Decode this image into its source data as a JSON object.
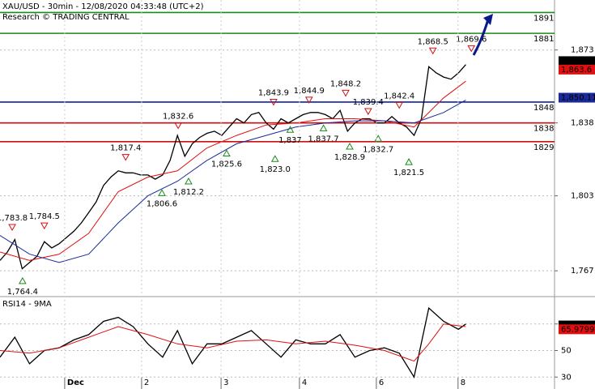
{
  "chart_data": [
    {
      "type": "line",
      "title": "XAU/USD - 30min - 12/08/2020 04:33:48 (UTC+2)",
      "subtitle": "Research © TRADING CENTRAL",
      "xlim": [
        0,
        150
      ],
      "ylim": [
        1755,
        1897
      ],
      "yticks": [
        {
          "value": 1767,
          "label": "1,767"
        },
        {
          "value": 1803,
          "label": "1,803"
        },
        {
          "value": 1838,
          "label": "1,838"
        },
        {
          "value": 1873,
          "label": "1,873"
        }
      ],
      "grid": true,
      "series": [
        {
          "color": "#000000",
          "x": [
            0,
            2,
            4,
            6,
            8,
            10,
            12,
            14,
            16,
            18,
            20,
            22,
            24,
            26,
            28,
            30,
            32,
            34,
            36,
            38,
            40,
            42,
            44,
            46,
            48,
            50,
            52,
            54,
            56,
            58,
            60,
            62,
            64,
            66,
            68,
            70,
            72,
            74,
            76,
            78,
            80,
            82,
            84,
            86,
            88,
            90,
            92,
            94,
            96,
            98,
            100,
            102,
            104,
            106,
            108,
            110,
            112,
            114,
            116,
            118,
            120,
            122,
            124,
            126
          ],
          "values": [
            1772,
            1776,
            1782,
            1768,
            1771,
            1774,
            1781,
            1778,
            1780,
            1783,
            1786,
            1790,
            1795,
            1800,
            1808,
            1812,
            1815,
            1814,
            1814,
            1813,
            1813,
            1811,
            1813,
            1820,
            1832,
            1822,
            1828,
            1831,
            1833,
            1834,
            1832,
            1836,
            1840,
            1838,
            1842,
            1843,
            1838,
            1835,
            1840,
            1838,
            1840,
            1842,
            1843,
            1843,
            1842,
            1840,
            1844,
            1834,
            1838,
            1840,
            1840,
            1838,
            1838,
            1841,
            1838,
            1836,
            1832,
            1840,
            1865,
            1862,
            1860,
            1859,
            1862,
            1866
          ]
        },
        {
          "color": "#e01010",
          "x": [
            0,
            8,
            16,
            24,
            32,
            40,
            48,
            56,
            64,
            72,
            80,
            88,
            96,
            104,
            112,
            120,
            126
          ],
          "values": [
            1776,
            1772,
            1775,
            1785,
            1805,
            1812,
            1815,
            1826,
            1832,
            1837,
            1838,
            1840,
            1840,
            1839,
            1836,
            1850,
            1858
          ]
        },
        {
          "color": "#1a2a9a",
          "x": [
            0,
            8,
            16,
            24,
            32,
            40,
            48,
            56,
            64,
            72,
            80,
            88,
            96,
            104,
            112,
            120,
            126
          ],
          "values": [
            1784,
            1775,
            1771,
            1775,
            1790,
            1803,
            1810,
            1820,
            1828,
            1832,
            1836,
            1838,
            1839,
            1839,
            1838,
            1843,
            1849
          ]
        }
      ],
      "levels": [
        {
          "value": 1891,
          "color": "#1a8a1a"
        },
        {
          "value": 1881,
          "color": "#1a8a1a"
        },
        {
          "value": 1848,
          "color": "#1020a0"
        },
        {
          "value": 1838,
          "color": "#d01010"
        },
        {
          "value": 1829,
          "color": "#d01010"
        }
      ],
      "annotations": [
        {
          "label": "1,783.8",
          "x": 3.3,
          "value": 1783.8,
          "kind": "high"
        },
        {
          "label": "1,784.5",
          "x": 12,
          "value": 1784.5,
          "kind": "high"
        },
        {
          "label": "1,764.4",
          "x": 6.1,
          "value": 1764.4,
          "kind": "low"
        },
        {
          "label": "1,817.4",
          "x": 34,
          "value": 1817.4,
          "kind": "high"
        },
        {
          "label": "1,806.6",
          "x": 43.8,
          "value": 1806.6,
          "kind": "low"
        },
        {
          "label": "1,832.6",
          "x": 48.2,
          "value": 1832.6,
          "kind": "high"
        },
        {
          "label": "1,812.2",
          "x": 51,
          "value": 1812.2,
          "kind": "low"
        },
        {
          "label": "1,825.6",
          "x": 61.3,
          "value": 1825.6,
          "kind": "low"
        },
        {
          "label": "1,843.9",
          "x": 74,
          "value": 1843.9,
          "kind": "high"
        },
        {
          "label": "1,823.0",
          "x": 74.4,
          "value": 1823.0,
          "kind": "low"
        },
        {
          "label": "1,837",
          "x": 78.5,
          "value": 1837,
          "kind": "low"
        },
        {
          "label": "1,844.9",
          "x": 83.6,
          "value": 1844.9,
          "kind": "high"
        },
        {
          "label": "1,837.7",
          "x": 87.5,
          "value": 1837.7,
          "kind": "low"
        },
        {
          "label": "1,848.2",
          "x": 93.5,
          "value": 1848.2,
          "kind": "high"
        },
        {
          "label": "1,828.9",
          "x": 94.6,
          "value": 1828.9,
          "kind": "low"
        },
        {
          "label": "1,839.4",
          "x": 99.6,
          "value": 1839.4,
          "kind": "high"
        },
        {
          "label": "1,832.7",
          "x": 102.3,
          "value": 1832.7,
          "kind": "low"
        },
        {
          "label": "1,842.4",
          "x": 108,
          "value": 1842.4,
          "kind": "high"
        },
        {
          "label": "1,821.5",
          "x": 110.6,
          "value": 1821.5,
          "kind": "low"
        },
        {
          "label": "1,868.5",
          "x": 117.1,
          "value": 1868.5,
          "kind": "high"
        },
        {
          "label": "1,869.6",
          "x": 127.5,
          "value": 1869.6,
          "kind": "high"
        }
      ],
      "price_tags": [
        {
          "label": "1,867.65",
          "value": 1867.65,
          "color": "#000000"
        },
        {
          "label": "1,863.6",
          "value": 1863.6,
          "color": "#e01010"
        },
        {
          "label": "1,850.11",
          "value": 1850.11,
          "color": "#1a2a9a"
        }
      ]
    },
    {
      "type": "line",
      "title": "RSI14 - 9MA",
      "xlim": [
        0,
        150
      ],
      "ylim": [
        21,
        90
      ],
      "yticks": [
        30,
        50,
        70
      ],
      "xticks": [
        {
          "value": 17.5,
          "label": "Dec"
        },
        {
          "value": 38.3,
          "label": "2"
        },
        {
          "value": 59.8,
          "label": "3"
        },
        {
          "value": 81,
          "label": "4"
        },
        {
          "value": 101.8,
          "label": "6"
        },
        {
          "value": 123.9,
          "label": "8"
        }
      ],
      "grid": true,
      "series": [
        {
          "color": "#000000",
          "x": [
            0,
            4,
            8,
            12,
            16,
            20,
            24,
            28,
            32,
            36,
            40,
            44,
            48,
            52,
            56,
            60,
            64,
            68,
            72,
            76,
            80,
            84,
            88,
            92,
            96,
            100,
            104,
            108,
            112,
            116,
            120,
            124,
            126
          ],
          "values": [
            45,
            60,
            40,
            50,
            52,
            58,
            62,
            72,
            75,
            68,
            55,
            45,
            65,
            40,
            55,
            55,
            60,
            65,
            55,
            45,
            58,
            55,
            55,
            62,
            45,
            50,
            52,
            48,
            30,
            82,
            72,
            66,
            70
          ]
        },
        {
          "color": "#e01010",
          "x": [
            0,
            8,
            16,
            24,
            32,
            40,
            48,
            56,
            64,
            72,
            80,
            88,
            96,
            104,
            112,
            116,
            120,
            126
          ],
          "values": [
            50,
            48,
            52,
            60,
            68,
            62,
            55,
            52,
            57,
            58,
            55,
            57,
            54,
            50,
            42,
            55,
            70,
            68
          ]
        }
      ],
      "price_tags": [
        {
          "label": "68.8782",
          "value": 68.8782,
          "color": "#000000"
        },
        {
          "label": "65.9799",
          "value": 65.9799,
          "color": "#e01010"
        }
      ]
    }
  ]
}
